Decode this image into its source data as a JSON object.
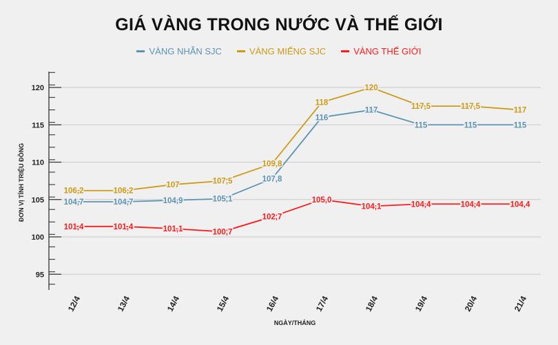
{
  "chart_data": {
    "type": "line",
    "title": "GIÁ VÀNG TRONG NƯỚC VÀ THẾ GIỚI",
    "xlabel": "NGÀY/THÁNG",
    "ylabel": "ĐƠN VỊ TÍNH TRIỆU ĐỒNG",
    "categories": [
      "12/4",
      "13/4",
      "14/4",
      "15/4",
      "16/4",
      "17/4",
      "18/4",
      "19/4",
      "20/4",
      "21/4"
    ],
    "yticks": [
      95,
      100,
      105,
      110,
      115,
      120
    ],
    "ylim": [
      92,
      122
    ],
    "grid": true,
    "legend_position": "top",
    "series": [
      {
        "name": "VÀNG NHẪN SJC",
        "color": "#5b93b3",
        "values": [
          104.7,
          104.7,
          104.9,
          105.1,
          107.8,
          116,
          117,
          115,
          115,
          115
        ],
        "labels": [
          "104,7",
          "104,7",
          "104,9",
          "105,1",
          "107,8",
          "116",
          "117",
          "115",
          "115",
          "115"
        ]
      },
      {
        "name": "VÀNG MIẾNG SJC",
        "color": "#cc9a14",
        "values": [
          106.2,
          106.2,
          107,
          107.5,
          109.8,
          118,
          120,
          117.5,
          117.5,
          117
        ],
        "labels": [
          "106,2",
          "106,2",
          "107",
          "107,5",
          "109,8",
          "118",
          "120",
          "117,5",
          "117,5",
          "117"
        ]
      },
      {
        "name": "VÀNG THẾ GIỚI",
        "color": "#ff1a1a",
        "values": [
          101.4,
          101.4,
          101.1,
          100.7,
          102.7,
          105.0,
          104.1,
          104.4,
          104.4,
          104.4
        ],
        "labels": [
          "101,4",
          "101,4",
          "101,1",
          "100,7",
          "102,7",
          "105,0",
          "104,1",
          "104,4",
          "104,4",
          "104,4"
        ]
      }
    ]
  }
}
